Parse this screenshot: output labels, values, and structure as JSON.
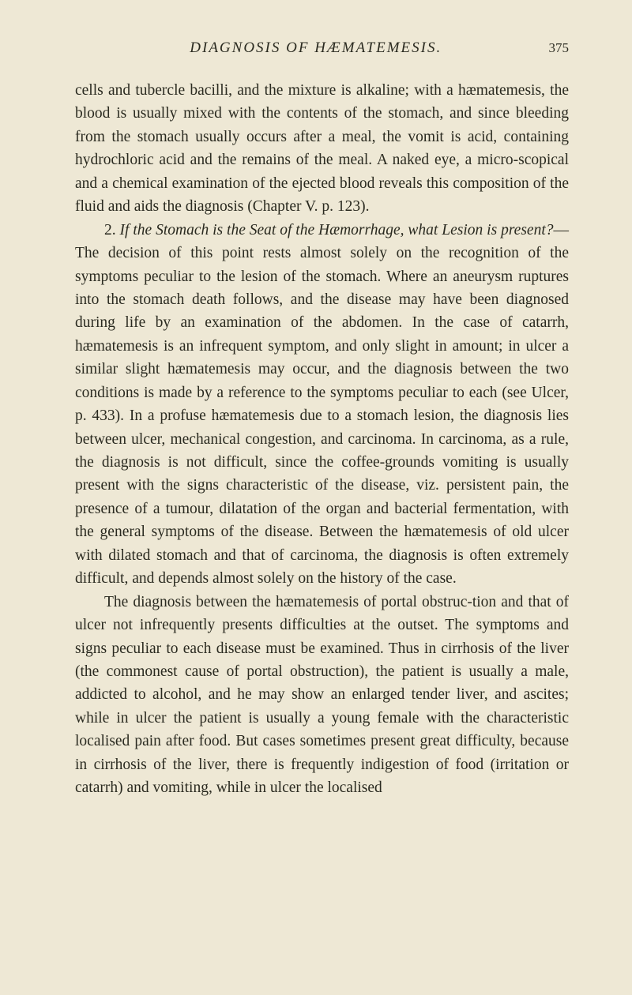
{
  "header": {
    "running_title": "DIAGNOSIS OF HÆMATEMESIS.",
    "page_number": "375"
  },
  "paragraphs": {
    "p1": "cells and tubercle bacilli, and the mixture is alkaline; with a hæmatemesis, the blood is usually mixed with the contents of the stomach, and since bleeding from the stomach usually occurs after a meal, the vomit is acid, containing hydrochloric acid and the remains of the meal. A naked eye, a micro-scopical and a chemical examination of the ejected blood reveals this composition of the fluid and aids the diagnosis (Chapter V. p. 123).",
    "p2_prefix": "2. ",
    "p2_italic": "If the Stomach is the Seat of the Hæmorrhage, what Lesion is present?",
    "p2_body": "—The decision of this point rests almost solely on the recognition of the symptoms peculiar to the lesion of the stomach. Where an aneurysm ruptures into the stomach death follows, and the disease may have been diagnosed during life by an examination of the abdomen. In the case of catarrh, hæmatemesis is an infrequent symptom, and only slight in amount; in ulcer a similar slight hæmatemesis may occur, and the diagnosis between the two conditions is made by a reference to the symptoms peculiar to each (see Ulcer, p. 433). In a profuse hæmatemesis due to a stomach lesion, the diagnosis lies between ulcer, mechanical congestion, and carcinoma. In carcinoma, as a rule, the diagnosis is not difficult, since the coffee-grounds vomiting is usually present with the signs characteristic of the disease, viz. persistent pain, the presence of a tumour, dilatation of the organ and bacterial fermentation, with the general symptoms of the disease. Between the hæmatemesis of old ulcer with dilated stomach and that of carcinoma, the diagnosis is often extremely difficult, and depends almost solely on the history of the case.",
    "p3": "The diagnosis between the hæmatemesis of portal obstruc-tion and that of ulcer not infrequently presents difficulties at the outset. The symptoms and signs peculiar to each disease must be examined. Thus in cirrhosis of the liver (the commonest cause of portal obstruction), the patient is usually a male, addicted to alcohol, and he may show an enlarged tender liver, and ascites; while in ulcer the patient is usually a young female with the characteristic localised pain after food. But cases sometimes present great difficulty, because in cirrhosis of the liver, there is frequently indigestion of food (irritation or catarrh) and vomiting, while in ulcer the localised"
  },
  "colors": {
    "page_background": "#eee8d5",
    "text_color": "#2a2a20"
  },
  "typography": {
    "body_font_size": 19.5,
    "line_height": 1.51,
    "header_font_size": 19,
    "page_number_font_size": 17
  }
}
